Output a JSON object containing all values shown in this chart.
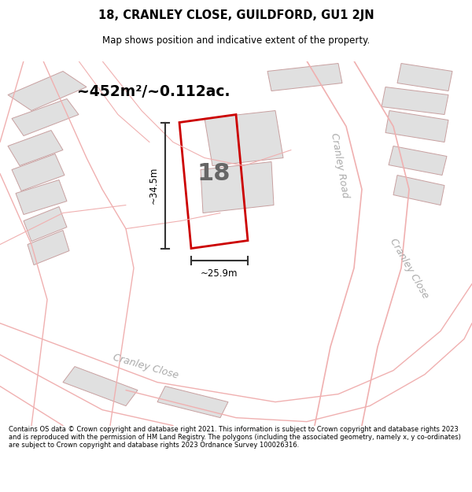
{
  "title": "18, CRANLEY CLOSE, GUILDFORD, GU1 2JN",
  "subtitle": "Map shows position and indicative extent of the property.",
  "footer": "Contains OS data © Crown copyright and database right 2021. This information is subject to Crown copyright and database rights 2023 and is reproduced with the permission of HM Land Registry. The polygons (including the associated geometry, namely x, y co-ordinates) are subject to Crown copyright and database rights 2023 Ordnance Survey 100026316.",
  "background_color": "#ffffff",
  "map_bg_color": "#ffffff",
  "title_color": "#000000",
  "area_label": "~452m²/~0.112ac.",
  "plot_number": "18",
  "dim_width": "~25.9m",
  "dim_height": "~34.5m",
  "plot_color": "#cc0000",
  "road_line_color": "#f0b0b0",
  "building_color": "#e0e0e0",
  "building_outline": "#c8a0a0",
  "dim_line_color": "#333333",
  "street_label_color": "#aaaaaa",
  "number_color": "#666666"
}
